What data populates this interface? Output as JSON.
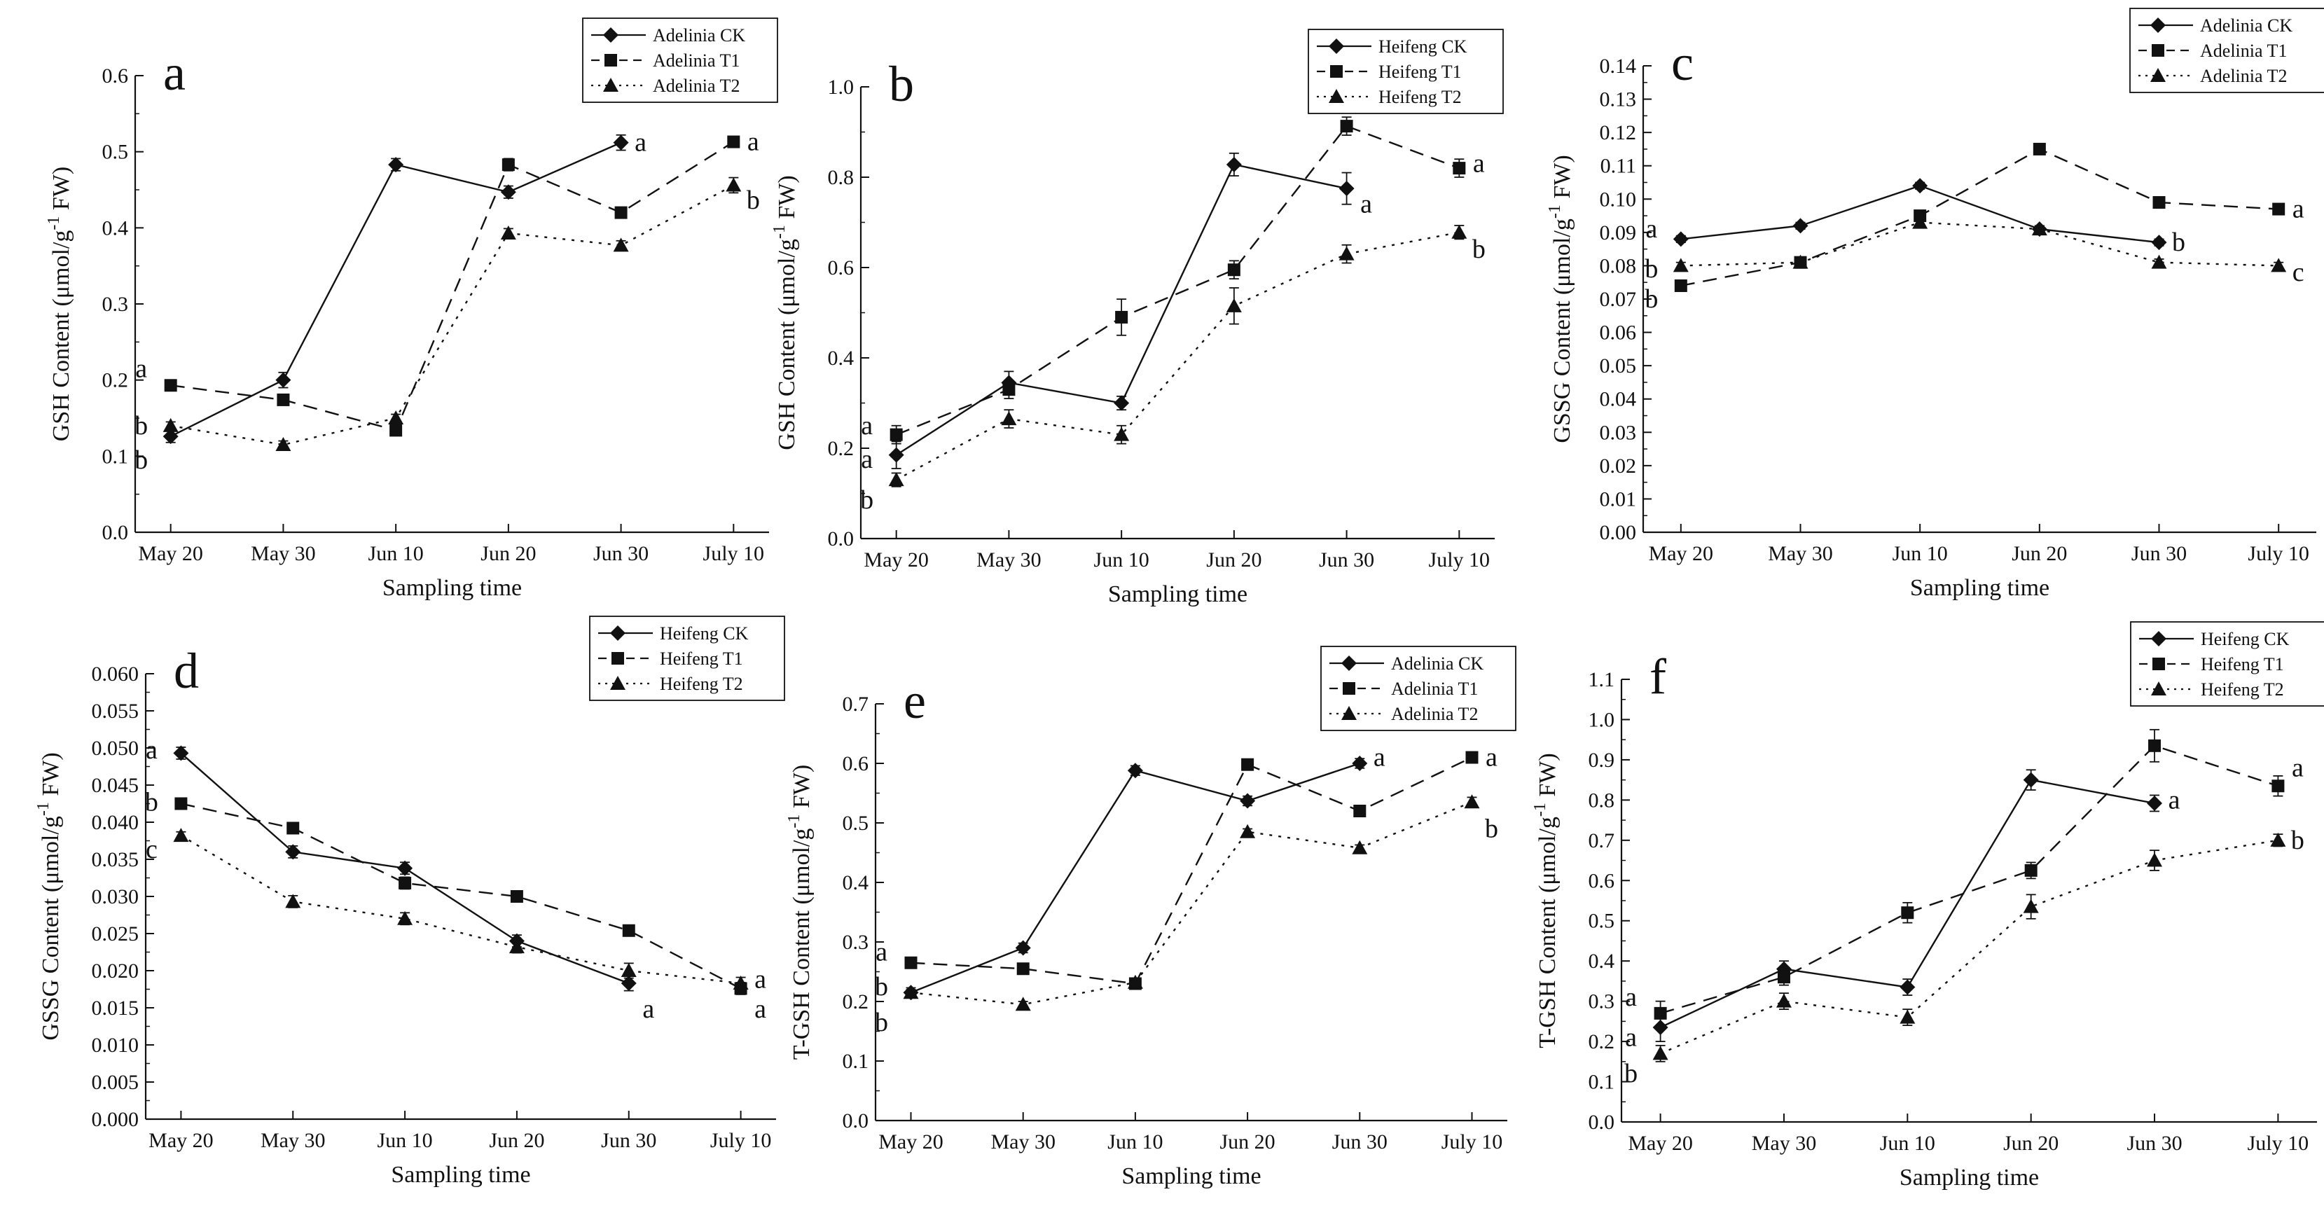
{
  "chart_data": [
    {
      "type": "line",
      "panel_label": "a",
      "categories": [
        "May 20",
        "May 30",
        "Jun 10",
        "Jun 20",
        "Jun 30",
        "July 10"
      ],
      "xlabel": "Sampling time",
      "ylabel_parts": [
        "GSH Content (μmol/g",
        "-1",
        " FW)"
      ],
      "ylim": [
        0,
        0.6
      ],
      "yticks": [
        "0.0",
        "0.1",
        "0.2",
        "0.3",
        "0.4",
        "0.5",
        "0.6"
      ],
      "legend": [
        "Adelinia CK",
        "Adelinia T1",
        "Adelinia T2"
      ],
      "series": [
        {
          "name": "Adelinia CK",
          "values": [
            0.126,
            0.2,
            0.483,
            0.447,
            0.512,
            null
          ],
          "errors": [
            0.008,
            0.01,
            0.008,
            0.008,
            0.01,
            null
          ]
        },
        {
          "name": "Adelinia T1",
          "values": [
            0.193,
            0.174,
            0.134,
            0.483,
            0.42,
            0.513
          ],
          "errors": [
            0.005,
            0.005,
            0.005,
            0.008,
            0.006,
            0.006
          ]
        },
        {
          "name": "Adelinia T2",
          "values": [
            0.14,
            0.115,
            0.15,
            0.393,
            0.377,
            0.456
          ],
          "errors": [
            0.005,
            0.005,
            0.005,
            0.006,
            0.006,
            0.01
          ]
        }
      ],
      "annotations": [
        {
          "text": "a",
          "x": "May 20",
          "y": 0.215
        },
        {
          "text": "b",
          "x": "May 20",
          "y": 0.14
        },
        {
          "text": "b",
          "x": "May 20",
          "y": 0.095
        },
        {
          "text": "a",
          "x": "Jun 30",
          "y": 0.512
        },
        {
          "text": "a",
          "x": "July 10",
          "y": 0.513
        },
        {
          "text": "b",
          "x": "July 10",
          "y": 0.436
        }
      ]
    },
    {
      "type": "line",
      "panel_label": "b",
      "categories": [
        "May 20",
        "May 30",
        "Jun 10",
        "Jun 20",
        "Jun 30",
        "July 10"
      ],
      "xlabel": "Sampling time",
      "ylabel_parts": [
        "GSH Content (μmol/g",
        "-1",
        " FW)"
      ],
      "ylim": [
        0,
        1.0
      ],
      "yticks": [
        "0.0",
        "0.2",
        "0.4",
        "0.6",
        "0.8",
        "1.0"
      ],
      "legend": [
        "Heifeng CK",
        "Heifeng T1",
        "Heifeng T2"
      ],
      "series": [
        {
          "name": "Heifeng CK",
          "values": [
            0.185,
            0.345,
            0.3,
            0.828,
            0.775,
            null
          ],
          "errors": [
            0.03,
            0.025,
            0.015,
            0.025,
            0.035,
            null
          ]
        },
        {
          "name": "Heifeng T1",
          "values": [
            0.23,
            0.33,
            0.49,
            0.595,
            0.913,
            0.82
          ],
          "errors": [
            0.02,
            0.02,
            0.04,
            0.02,
            0.02,
            0.02
          ]
        },
        {
          "name": "Heifeng T2",
          "values": [
            0.13,
            0.265,
            0.23,
            0.515,
            0.63,
            0.678
          ],
          "errors": [
            0.015,
            0.02,
            0.02,
            0.04,
            0.02,
            0.015
          ]
        }
      ],
      "annotations": [
        {
          "text": "a",
          "x": "May 20",
          "y": 0.25
        },
        {
          "text": "a",
          "x": "May 20",
          "y": 0.175
        },
        {
          "text": "b",
          "x": "May 20",
          "y": 0.085
        },
        {
          "text": "a",
          "x": "Jun 30",
          "y": 0.74
        },
        {
          "text": "a",
          "x": "July 10",
          "y": 0.83
        },
        {
          "text": "b",
          "x": "July 10",
          "y": 0.64
        }
      ]
    },
    {
      "type": "line",
      "panel_label": "c",
      "categories": [
        "May 20",
        "May 30",
        "Jun 10",
        "Jun 20",
        "Jun 30",
        "July 10"
      ],
      "xlabel": "Sampling time",
      "ylabel_parts": [
        "GSSG Content (μmol/g",
        "-1",
        " FW)"
      ],
      "ylim": [
        0,
        0.14
      ],
      "yticks": [
        "0.00",
        "0.01",
        "0.02",
        "0.03",
        "0.04",
        "0.05",
        "0.06",
        "0.07",
        "0.08",
        "0.09",
        "0.10",
        "0.11",
        "0.12",
        "0.13",
        "0.14"
      ],
      "legend": [
        "Adelinia CK",
        "Adelinia T1",
        "Adelinia T2"
      ],
      "series": [
        {
          "name": "Adelinia CK",
          "values": [
            0.088,
            0.092,
            0.104,
            0.091,
            0.087,
            null
          ],
          "errors": [
            0.001,
            0.001,
            0.001,
            0.001,
            0.001,
            null
          ]
        },
        {
          "name": "Adelinia T1",
          "values": [
            0.074,
            0.081,
            0.095,
            0.115,
            0.099,
            0.097
          ],
          "errors": [
            0.001,
            0.001,
            0.001,
            0.001,
            0.001,
            0.001
          ]
        },
        {
          "name": "Adelinia T2",
          "values": [
            0.08,
            0.081,
            0.093,
            0.091,
            0.081,
            0.08
          ],
          "errors": [
            0.001,
            0.001,
            0.001,
            0.001,
            0.001,
            0.001
          ]
        }
      ],
      "annotations": [
        {
          "text": "a",
          "x": "May 20",
          "y": 0.091
        },
        {
          "text": "b",
          "x": "May 20",
          "y": 0.079
        },
        {
          "text": "b",
          "x": "May 20",
          "y": 0.07
        },
        {
          "text": "b",
          "x": "Jun 30",
          "y": 0.087
        },
        {
          "text": "a",
          "x": "July 10",
          "y": 0.097
        },
        {
          "text": "c",
          "x": "July 10",
          "y": 0.078
        }
      ]
    },
    {
      "type": "line",
      "panel_label": "d",
      "categories": [
        "May 20",
        "May 30",
        "Jun 10",
        "Jun 20",
        "Jun 30",
        "July 10"
      ],
      "xlabel": "Sampling time",
      "ylabel_parts": [
        "GSSG Content (μmol/g",
        "-1",
        " FW)"
      ],
      "ylim": [
        0,
        0.06
      ],
      "yticks": [
        "0.000",
        "0.005",
        "0.010",
        "0.015",
        "0.020",
        "0.025",
        "0.030",
        "0.035",
        "0.040",
        "0.045",
        "0.050",
        "0.055",
        "0.060"
      ],
      "legend": [
        "Heifeng CK",
        "Heifeng T1",
        "Heifeng T2"
      ],
      "series": [
        {
          "name": "Heifeng CK",
          "values": [
            0.0493,
            0.036,
            0.0338,
            0.024,
            0.0183,
            null
          ],
          "errors": [
            0.0008,
            0.0008,
            0.0008,
            0.0008,
            0.001,
            null
          ]
        },
        {
          "name": "Heifeng T1",
          "values": [
            0.0425,
            0.0392,
            0.0318,
            0.03,
            0.0254,
            0.0176
          ],
          "errors": [
            0.0005,
            0.0005,
            0.0008,
            0.0005,
            0.0005,
            0.0008
          ]
        },
        {
          "name": "Heifeng T2",
          "values": [
            0.0382,
            0.0293,
            0.027,
            0.0232,
            0.02,
            0.0183
          ],
          "errors": [
            0.0005,
            0.0008,
            0.0008,
            0.0008,
            0.001,
            0.0008
          ]
        }
      ],
      "annotations": [
        {
          "text": "a",
          "x": "May 20",
          "y": 0.0497
        },
        {
          "text": "b",
          "x": "May 20",
          "y": 0.0427
        },
        {
          "text": "c",
          "x": "May 20",
          "y": 0.0363
        },
        {
          "text": "a",
          "x": "Jun 30",
          "y": 0.0148
        },
        {
          "text": "a",
          "x": "July 10",
          "y": 0.0188
        },
        {
          "text": "a",
          "x": "July 10",
          "y": 0.0148
        }
      ]
    },
    {
      "type": "line",
      "panel_label": "e",
      "categories": [
        "May 20",
        "May 30",
        "Jun 10",
        "Jun 20",
        "Jun 30",
        "July 10"
      ],
      "xlabel": "Sampling time",
      "ylabel_parts": [
        "T-GSH Content (μmol/g",
        "-1",
        " FW)"
      ],
      "ylim": [
        0,
        0.7
      ],
      "yticks": [
        "0.0",
        "0.1",
        "0.2",
        "0.3",
        "0.4",
        "0.5",
        "0.6",
        "0.7"
      ],
      "legend": [
        "Adelinia CK",
        "Adelinia T1",
        "Adelinia T2"
      ],
      "series": [
        {
          "name": "Adelinia CK",
          "values": [
            0.215,
            0.29,
            0.588,
            0.537,
            0.6,
            null
          ],
          "errors": [
            0.008,
            0.008,
            0.008,
            0.008,
            0.008,
            null
          ]
        },
        {
          "name": "Adelinia T1",
          "values": [
            0.265,
            0.255,
            0.23,
            0.598,
            0.52,
            0.61
          ],
          "errors": [
            0.005,
            0.005,
            0.005,
            0.008,
            0.005,
            0.005
          ]
        },
        {
          "name": "Adelinia T2",
          "values": [
            0.215,
            0.195,
            0.232,
            0.485,
            0.458,
            0.535
          ],
          "errors": [
            0.005,
            0.005,
            0.005,
            0.005,
            0.005,
            0.008
          ]
        }
      ],
      "annotations": [
        {
          "text": "a",
          "x": "May 20",
          "y": 0.283
        },
        {
          "text": "b",
          "x": "May 20",
          "y": 0.225
        },
        {
          "text": "b",
          "x": "May 20",
          "y": 0.165
        },
        {
          "text": "a",
          "x": "Jun 30",
          "y": 0.61
        },
        {
          "text": "a",
          "x": "July 10",
          "y": 0.61
        },
        {
          "text": "b",
          "x": "July 10",
          "y": 0.49
        }
      ]
    },
    {
      "type": "line",
      "panel_label": "f",
      "categories": [
        "May 20",
        "May 30",
        "Jun 10",
        "Jun 20",
        "Jun 30",
        "July 10"
      ],
      "xlabel": "Sampling time",
      "ylabel_parts": [
        "T-GSH Content (μmol/g",
        "-1",
        " FW)"
      ],
      "ylim": [
        0,
        1.1
      ],
      "yticks": [
        "0.0",
        "0.1",
        "0.2",
        "0.3",
        "0.4",
        "0.5",
        "0.6",
        "0.7",
        "0.8",
        "0.9",
        "1.0",
        "1.1"
      ],
      "legend": [
        "Heifeng CK",
        "Heifeng T1",
        "Heifeng T2"
      ],
      "series": [
        {
          "name": "Heifeng CK",
          "values": [
            0.235,
            0.38,
            0.335,
            0.85,
            0.792,
            null
          ],
          "errors": [
            0.035,
            0.02,
            0.02,
            0.025,
            0.02,
            null
          ]
        },
        {
          "name": "Heifeng T1",
          "values": [
            0.27,
            0.36,
            0.52,
            0.625,
            0.935,
            0.835
          ],
          "errors": [
            0.03,
            0.02,
            0.025,
            0.02,
            0.04,
            0.025
          ]
        },
        {
          "name": "Heifeng T2",
          "values": [
            0.17,
            0.3,
            0.26,
            0.535,
            0.65,
            0.7
          ],
          "errors": [
            0.02,
            0.02,
            0.02,
            0.03,
            0.025,
            0.015
          ]
        }
      ],
      "annotations": [
        {
          "text": "a",
          "x": "May 20",
          "y": 0.31
        },
        {
          "text": "a",
          "x": "May 20",
          "y": 0.21
        },
        {
          "text": "b",
          "x": "May 20",
          "y": 0.12
        },
        {
          "text": "a",
          "x": "Jun 30",
          "y": 0.8
        },
        {
          "text": "a",
          "x": "July 10",
          "y": 0.88
        },
        {
          "text": "b",
          "x": "July 10",
          "y": 0.7
        }
      ]
    }
  ]
}
